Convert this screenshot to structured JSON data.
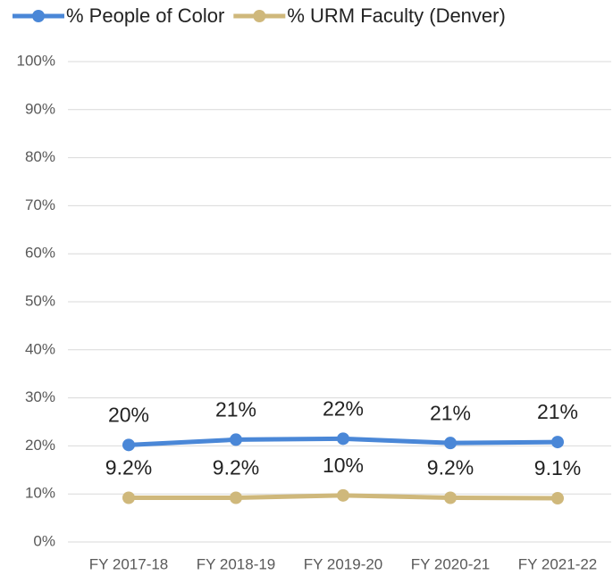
{
  "chart_data": {
    "type": "line",
    "categories": [
      "FY 2017-18",
      "FY 2018-19",
      "FY 2019-20",
      "FY 2020-21",
      "FY 2021-22"
    ],
    "series": [
      {
        "name": "% People of Color",
        "color": "#4a87d7",
        "values": [
          20.2,
          21.3,
          21.5,
          20.6,
          20.8
        ],
        "value_labels": [
          "20%",
          "21%",
          "22%",
          "21%",
          "21%"
        ]
      },
      {
        "name": "% URM Faculty (Denver)",
        "color": "#cfb87b",
        "values": [
          9.2,
          9.2,
          9.7,
          9.2,
          9.1
        ],
        "value_labels": [
          "9.2%",
          "9.2%",
          "10%",
          "9.2%",
          "9.1%"
        ]
      }
    ],
    "ylim": [
      0,
      100
    ],
    "yticks": [
      {
        "value": 0,
        "label": "0%"
      },
      {
        "value": 10,
        "label": "10%"
      },
      {
        "value": 20,
        "label": "20%"
      },
      {
        "value": 30,
        "label": "30%"
      },
      {
        "value": 40,
        "label": "40%"
      },
      {
        "value": 50,
        "label": "50%"
      },
      {
        "value": 60,
        "label": "60%"
      },
      {
        "value": 70,
        "label": "70%"
      },
      {
        "value": 80,
        "label": "80%"
      },
      {
        "value": 90,
        "label": "90%"
      },
      {
        "value": 100,
        "label": "100%"
      }
    ],
    "grid": true,
    "legend": "top"
  }
}
